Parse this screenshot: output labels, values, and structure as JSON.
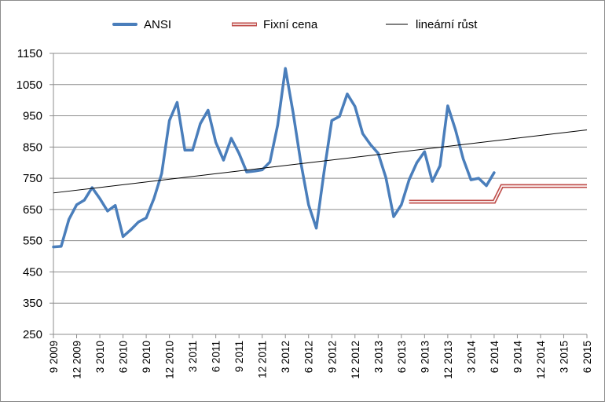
{
  "chart_data": {
    "type": "line",
    "title": "",
    "xlabel": "",
    "ylabel": "",
    "ylim": [
      250,
      1150
    ],
    "yticks": [
      250,
      350,
      450,
      550,
      650,
      750,
      850,
      950,
      1050,
      1150
    ],
    "grid": true,
    "legend_position": "top",
    "x_tick_labels": [
      "9 2009",
      "12 2009",
      "3 2010",
      "6 2010",
      "9 2010",
      "12 2010",
      "3 2011",
      "6 2011",
      "9 2011",
      "12 2011",
      "3 2012",
      "6 2012",
      "9 2012",
      "12 2012",
      "3 2013",
      "6 2013",
      "9 2013",
      "12 2013",
      "3 2014",
      "6 2014",
      "9 2014",
      "12 2014",
      "3 2015",
      "6 2015"
    ],
    "series": [
      {
        "name": "ANSI",
        "color": "#4a7ebb",
        "style": "thick-line",
        "x": [
          "9 2009",
          "10 2009",
          "11 2009",
          "12 2009",
          "1 2010",
          "2 2010",
          "3 2010",
          "4 2010",
          "5 2010",
          "6 2010",
          "7 2010",
          "8 2010",
          "9 2010",
          "10 2010",
          "11 2010",
          "12 2010",
          "1 2011",
          "2 2011",
          "3 2011",
          "4 2011",
          "5 2011",
          "6 2011",
          "7 2011",
          "8 2011",
          "9 2011",
          "10 2011",
          "11 2011",
          "12 2011",
          "1 2012",
          "2 2012",
          "3 2012",
          "4 2012",
          "5 2012",
          "6 2012",
          "7 2012",
          "8 2012",
          "9 2012",
          "10 2012",
          "11 2012",
          "12 2012",
          "1 2013",
          "2 2013",
          "3 2013",
          "4 2013",
          "5 2013",
          "6 2013",
          "7 2013",
          "8 2013",
          "9 2013",
          "10 2013",
          "11 2013",
          "12 2013",
          "1 2014",
          "2 2014",
          "3 2014",
          "4 2014",
          "5 2014",
          "6 2014"
        ],
        "values": [
          530,
          532,
          618,
          665,
          680,
          720,
          685,
          645,
          663,
          563,
          585,
          610,
          623,
          685,
          765,
          935,
          993,
          840,
          840,
          925,
          968,
          865,
          808,
          878,
          830,
          770,
          773,
          777,
          802,
          920,
          1102,
          960,
          800,
          665,
          590,
          770,
          935,
          948,
          1020,
          980,
          893,
          858,
          830,
          752,
          627,
          665,
          745,
          800,
          835,
          740,
          790,
          982,
          905,
          812,
          745,
          750,
          726,
          768
        ]
      },
      {
        "name": "Fixní cena",
        "color": "#c0504d",
        "style": "double-line",
        "x": [
          "7 2013",
          "6 2014",
          "7 2014",
          "6 2015"
        ],
        "values": [
          675,
          675,
          725,
          725
        ]
      },
      {
        "name": "lineární růst",
        "color": "#000000",
        "style": "thin-line",
        "x": [
          "9 2009",
          "6 2015"
        ],
        "values": [
          703,
          905
        ]
      }
    ]
  }
}
